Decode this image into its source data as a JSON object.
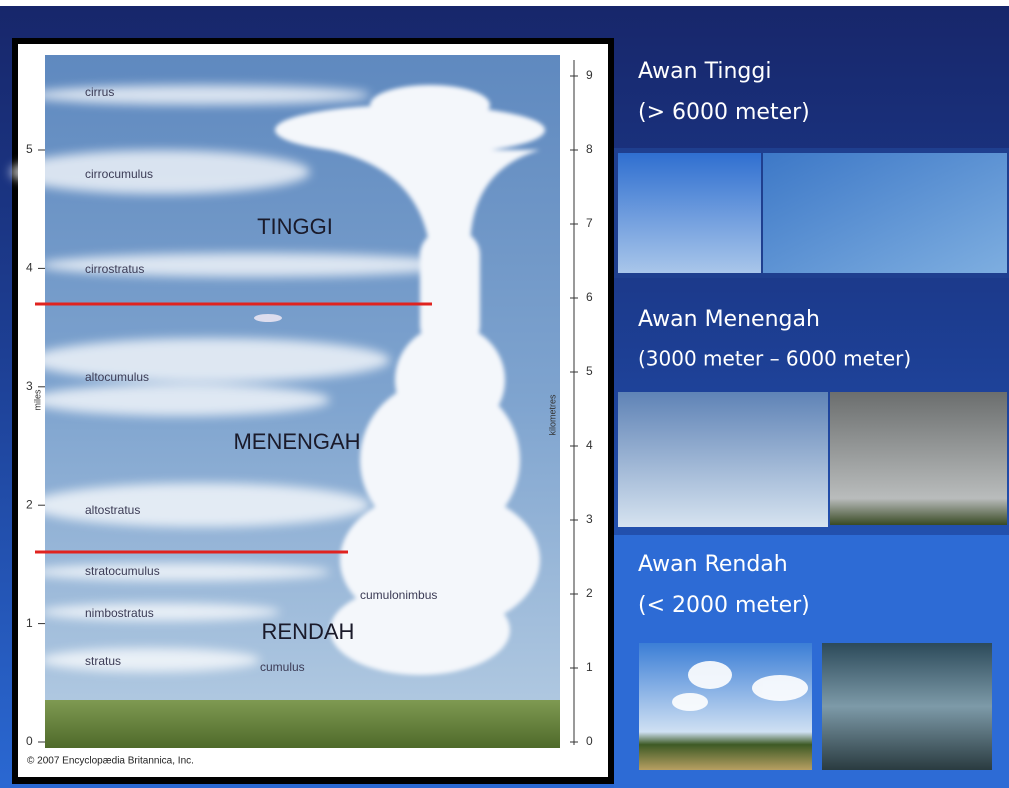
{
  "diagram": {
    "cloud_labels": [
      "cirrus",
      "cirrocumulus",
      "cirrostratus",
      "altocumulus",
      "altostratus",
      "stratocumulus",
      "nimbostratus",
      "stratus",
      "cumulus",
      "cumulonimbus"
    ],
    "layer_labels": [
      "TINGGI",
      "MENENGAH",
      "RENDAH"
    ],
    "miles_axis": {
      "label": "miles",
      "ticks": [
        0,
        1,
        2,
        3,
        4,
        5
      ]
    },
    "km_axis": {
      "label": "kilometres",
      "ticks": [
        0,
        1,
        2,
        3,
        4,
        5,
        6,
        7,
        8,
        9
      ]
    },
    "credit": "© 2007 Encyclopædia Britannica, Inc."
  },
  "panels": [
    {
      "title": "Awan Tinggi",
      "range": "(> 6000 meter)"
    },
    {
      "title": "Awan Menengah",
      "range": "(3000 meter – 6000 meter)"
    },
    {
      "title": "Awan Rendah",
      "range": "(< 2000 meter)"
    }
  ]
}
